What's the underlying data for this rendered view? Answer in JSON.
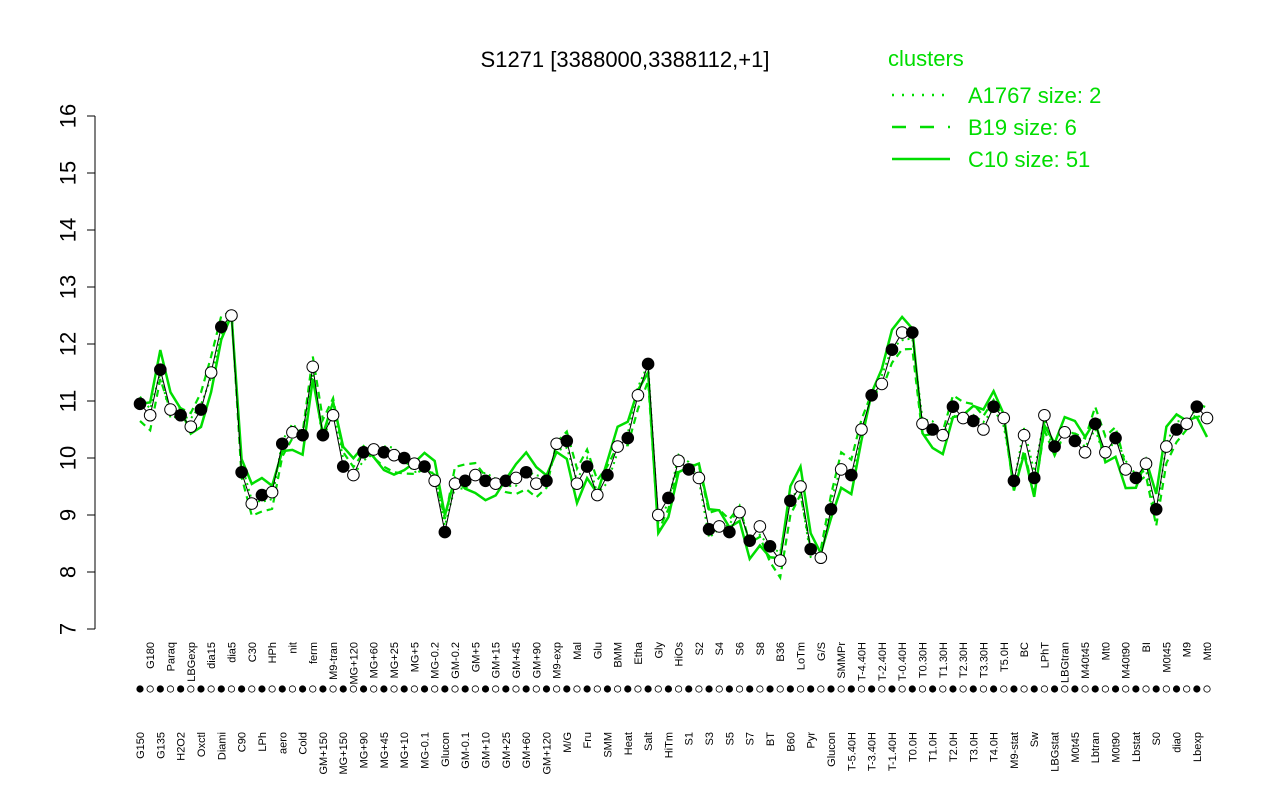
{
  "chart_data": {
    "type": "line",
    "title": "S1271 [3388000,3388112,+1]",
    "xlabel": "",
    "ylabel": "",
    "ylim": [
      7,
      16
    ],
    "yticks": [
      7,
      8,
      9,
      10,
      11,
      12,
      13,
      14,
      15,
      16
    ],
    "grid": false,
    "x_tick_labels": [
      "G150",
      "G180",
      "G135",
      "Paraq",
      "H2O2",
      "LBGexp",
      "Oxctl",
      "dia15",
      "Diami",
      "dia5",
      "C90",
      "C30",
      "LPh",
      "HPh",
      "aero",
      "nit",
      "Cold",
      "ferm",
      "GM+150",
      "M9-tran",
      "MG+150",
      "MG+120",
      "MG+90",
      "MG+60",
      "MG+45",
      "MG+25",
      "MG+10",
      "MG+5",
      "MG-0.1",
      "MG-0.2",
      "Glucon",
      "GM-0.2",
      "GM-0.1",
      "GM+5",
      "GM+10",
      "GM+15",
      "GM+25",
      "GM+45",
      "GM+60",
      "GM+90",
      "GM+120",
      "M9-exp",
      "M/G",
      "Mal",
      "Fru",
      "Glu",
      "SMM",
      "BMM",
      "Heat",
      "Etha",
      "Salt",
      "Gly",
      "HiTm",
      "HiOs",
      "S1",
      "S2",
      "S3",
      "S4",
      "S5",
      "S6",
      "S7",
      "S8",
      "BT",
      "B36",
      "B60",
      "LoTm",
      "Pyr",
      "G/S",
      "Glucon",
      "SMMPr",
      "T-5.40H",
      "T-4.40H",
      "T-3.40H",
      "T-2.40H",
      "T-1.40H",
      "T-0.40H",
      "T0.0H",
      "T0.30H",
      "T1.0H",
      "T1.30H",
      "T2.0H",
      "T2.30H",
      "T3.0H",
      "T3.30H",
      "T4.0H",
      "T5.0H",
      "M9-stat",
      "BC",
      "Sw",
      "LPhT",
      "LBGstat",
      "LBGtran",
      "M0t45",
      "M40t45",
      "Lbtran",
      "Mt0",
      "M0t90",
      "M40t90",
      "Lbstat",
      "BI",
      "S0",
      "M0t45",
      "dia0",
      "M9",
      "Lbexp",
      "Mt0"
    ],
    "legend": {
      "title": "clusters",
      "position": "top-right",
      "entries": [
        {
          "label": "A1767 size: 2",
          "style": "dotted"
        },
        {
          "label": "B19 size: 6",
          "style": "dashed"
        },
        {
          "label": "C10 size: 51",
          "style": "solid"
        }
      ]
    },
    "colors": {
      "cluster": "#00dd00",
      "series": "#000000",
      "axis": "#000000",
      "background": "#ffffff"
    },
    "series": [
      {
        "values": [
          10.95,
          10.75,
          11.55,
          10.85,
          10.75,
          10.55,
          10.85,
          11.5,
          12.3,
          12.5,
          9.75,
          9.2,
          9.35,
          9.4,
          10.25,
          10.45,
          10.4,
          11.6,
          10.4,
          10.75,
          9.85,
          9.7,
          10.1,
          10.15,
          10.1,
          10.05,
          10.0,
          9.9,
          9.85,
          9.6,
          8.7,
          9.55,
          9.6,
          9.7,
          9.6,
          9.55,
          9.6,
          9.65,
          9.75,
          9.55,
          9.6,
          10.25,
          10.3,
          9.55,
          9.85,
          9.35,
          9.7,
          10.2,
          10.35,
          11.1,
          11.65,
          9.0,
          9.3,
          9.95,
          9.8,
          9.65,
          8.75,
          8.8,
          8.7,
          9.05,
          8.55,
          8.8,
          8.45,
          8.2,
          9.25,
          9.5,
          8.4,
          8.25,
          9.1,
          9.8,
          9.7,
          10.5,
          11.1,
          11.3,
          11.9,
          12.2,
          12.2,
          10.6,
          10.5,
          10.4,
          10.9,
          10.7,
          10.65,
          10.5,
          10.9,
          10.7,
          9.6,
          10.4,
          9.65,
          10.75,
          10.2,
          10.45,
          10.3,
          10.1,
          10.6,
          10.1,
          10.35,
          9.8,
          9.65,
          9.9,
          9.1,
          10.2,
          10.5,
          10.6,
          10.9,
          10.7
        ]
      }
    ]
  }
}
